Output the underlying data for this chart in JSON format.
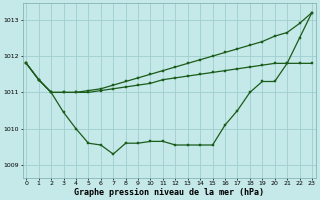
{
  "xlabel": "Graphe pression niveau de la mer (hPa)",
  "background_color": "#c5e8e8",
  "grid_color": "#9ecece",
  "line_color": "#1a5c1a",
  "ylim": [
    1008.65,
    1013.45
  ],
  "xlim": [
    -0.3,
    23.3
  ],
  "yticks": [
    1009,
    1010,
    1011,
    1012,
    1013
  ],
  "xticks": [
    0,
    1,
    2,
    3,
    4,
    5,
    6,
    7,
    8,
    9,
    10,
    11,
    12,
    13,
    14,
    15,
    16,
    17,
    18,
    19,
    20,
    21,
    22,
    23
  ],
  "line1_x": [
    0,
    1,
    2,
    3,
    4,
    5,
    6,
    7,
    8,
    9,
    10,
    11,
    12,
    13,
    14,
    15,
    16,
    17,
    18,
    19,
    20,
    21,
    22,
    23
  ],
  "line1_y": [
    1011.8,
    1011.35,
    1011.0,
    1011.0,
    1011.0,
    1011.0,
    1011.05,
    1011.1,
    1011.15,
    1011.2,
    1011.25,
    1011.35,
    1011.4,
    1011.45,
    1011.5,
    1011.55,
    1011.6,
    1011.65,
    1011.7,
    1011.75,
    1011.8,
    1011.8,
    1011.8,
    1011.8
  ],
  "line2_x": [
    0,
    1,
    2,
    3,
    4,
    5,
    6,
    7,
    8,
    9,
    10,
    11,
    12,
    13,
    14,
    15,
    16,
    17,
    18,
    19,
    20,
    21,
    22,
    23
  ],
  "line2_y": [
    1011.8,
    1011.35,
    1011.0,
    1010.45,
    1010.0,
    1009.6,
    1009.55,
    1009.3,
    1009.6,
    1009.6,
    1009.65,
    1009.65,
    1009.55,
    1009.55,
    1009.55,
    1009.55,
    1010.1,
    1010.5,
    1011.0,
    1011.3,
    1011.3,
    1011.8,
    1012.5,
    1013.2
  ],
  "line3_x": [
    0,
    1,
    2,
    3,
    4,
    5,
    6,
    7,
    8,
    9,
    10,
    11,
    12,
    13,
    14,
    15,
    16,
    17,
    18,
    19,
    20,
    21,
    22,
    23
  ],
  "line3_y": [
    1011.8,
    1011.35,
    1011.0,
    1011.0,
    1011.0,
    1011.05,
    1011.1,
    1011.2,
    1011.3,
    1011.4,
    1011.5,
    1011.6,
    1011.7,
    1011.8,
    1011.9,
    1012.0,
    1012.1,
    1012.2,
    1012.3,
    1012.4,
    1012.55,
    1012.65,
    1012.9,
    1013.2
  ]
}
